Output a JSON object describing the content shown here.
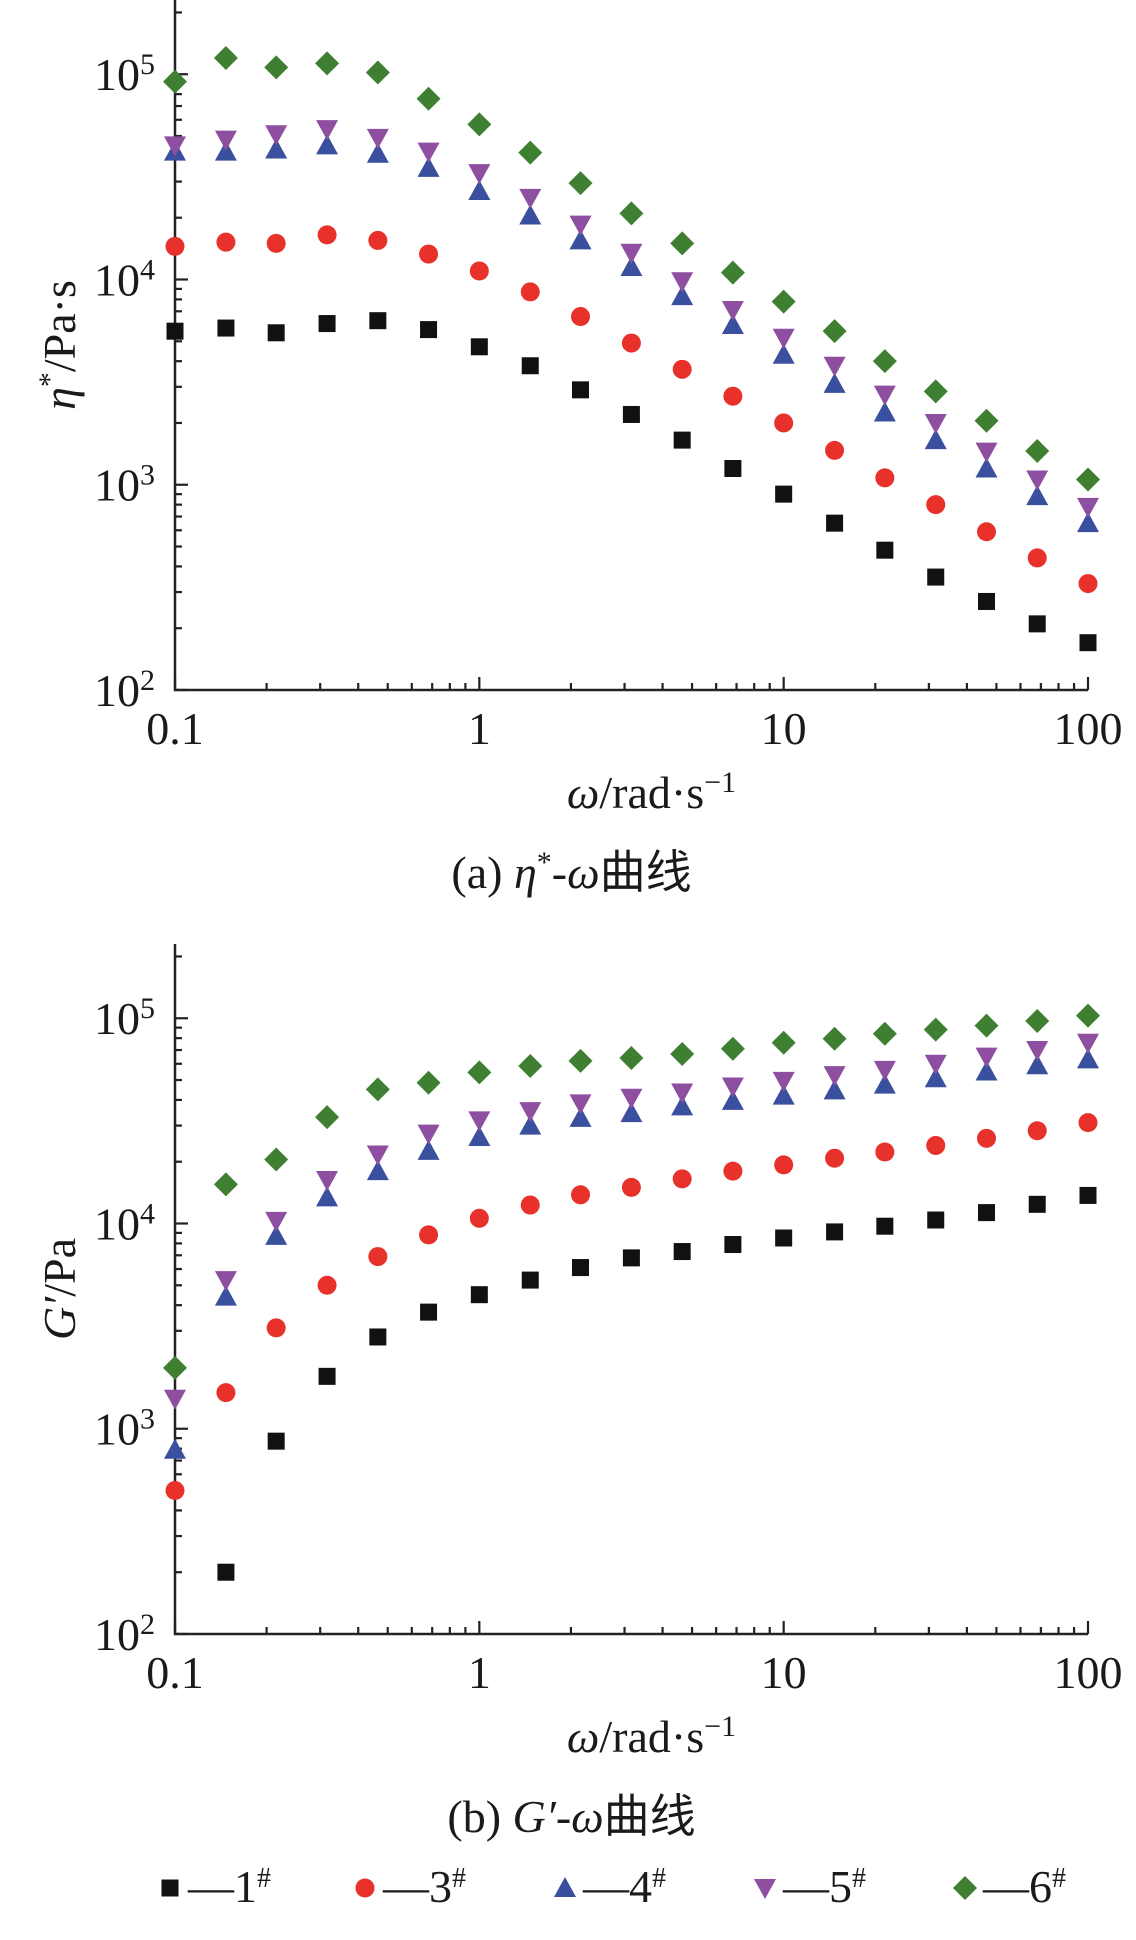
{
  "chart_data": [
    {
      "type": "scatter",
      "caption": "(a) η*-ω曲线",
      "xlabel": "ω/rad·s⁻¹",
      "ylabel": "η*/Pa·s",
      "xscale": "log",
      "yscale": "log",
      "xlim": [
        0.1,
        100
      ],
      "ylim": [
        100,
        230000
      ],
      "xticks": [
        0.1,
        1,
        10,
        100
      ],
      "xtick_labels": [
        "0.1",
        "1",
        "10",
        "100"
      ],
      "yticks": [
        100,
        1000,
        10000,
        100000
      ],
      "ytick_labels": [
        "10",
        "10",
        "10",
        "10"
      ],
      "ytick_exponents": [
        "2",
        "3",
        "4",
        "5"
      ],
      "x": [
        0.1,
        0.147,
        0.215,
        0.316,
        0.464,
        0.681,
        1.0,
        1.47,
        2.15,
        3.16,
        4.64,
        6.81,
        10.0,
        14.7,
        21.5,
        31.6,
        46.4,
        68.1,
        100
      ],
      "series": [
        {
          "name": "1#",
          "marker": "square",
          "color": "#111111",
          "values": [
            5600,
            5800,
            5500,
            6100,
            6300,
            5700,
            4700,
            3800,
            2900,
            2200,
            1650,
            1200,
            900,
            650,
            480,
            355,
            270,
            210,
            170
          ]
        },
        {
          "name": "3#",
          "marker": "circle",
          "color": "#e8312b",
          "values": [
            14500,
            15200,
            15000,
            16500,
            15500,
            13300,
            11000,
            8700,
            6600,
            4900,
            3650,
            2700,
            2000,
            1470,
            1080,
            800,
            590,
            440,
            330
          ]
        },
        {
          "name": "4#",
          "marker": "triangle-up",
          "color": "#3a4f9e",
          "values": [
            42000,
            42000,
            43000,
            45000,
            41000,
            35000,
            27000,
            20500,
            15500,
            11500,
            8300,
            6000,
            4300,
            3100,
            2250,
            1650,
            1200,
            880,
            650
          ]
        },
        {
          "name": "5#",
          "marker": "triangle-down",
          "color": "#8e4fa0",
          "values": [
            45000,
            48000,
            51000,
            54000,
            49000,
            42000,
            33000,
            25000,
            18500,
            13500,
            9800,
            7100,
            5200,
            3800,
            2750,
            2000,
            1450,
            1060,
            780
          ]
        },
        {
          "name": "6#",
          "marker": "diamond",
          "color": "#3f7f32",
          "values": [
            92000,
            120000,
            108000,
            113000,
            102000,
            76000,
            57000,
            41500,
            29500,
            21000,
            15000,
            10800,
            7800,
            5600,
            4000,
            2850,
            2050,
            1460,
            1060
          ]
        }
      ]
    },
    {
      "type": "scatter",
      "caption": "(b) G′-ω曲线",
      "xlabel": "ω/rad·s⁻¹",
      "ylabel": "G′/Pa",
      "xscale": "log",
      "yscale": "log",
      "xlim": [
        0.1,
        100
      ],
      "ylim": [
        100,
        230000
      ],
      "xticks": [
        0.1,
        1,
        10,
        100
      ],
      "xtick_labels": [
        "0.1",
        "1",
        "10",
        "100"
      ],
      "yticks": [
        100,
        1000,
        10000,
        100000
      ],
      "ytick_labels": [
        "10",
        "10",
        "10",
        "10"
      ],
      "ytick_exponents": [
        "2",
        "3",
        "4",
        "5"
      ],
      "x": [
        0.147,
        0.215,
        0.316,
        0.464,
        0.681,
        1.0,
        1.47,
        2.15,
        3.16,
        4.64,
        6.81,
        10.0,
        14.7,
        21.5,
        31.6,
        46.4,
        68.1,
        100
      ],
      "series": [
        {
          "name": "1#",
          "marker": "square",
          "color": "#111111",
          "values": [
            200,
            870,
            1800,
            2800,
            3700,
            4500,
            5300,
            6100,
            6800,
            7300,
            7900,
            8500,
            9100,
            9700,
            10400,
            11300,
            12400,
            13700
          ]
        },
        {
          "name": "3#",
          "marker": "circle",
          "color": "#e8312b",
          "values": [
            1500,
            3100,
            5000,
            6900,
            8800,
            10600,
            12300,
            13800,
            15000,
            16500,
            18000,
            19300,
            20800,
            22300,
            24000,
            26000,
            28300,
            31000
          ]
        },
        {
          "name": "4#",
          "marker": "triangle-up",
          "color": "#3a4f9e",
          "values": [
            4400,
            8700,
            13400,
            18000,
            22600,
            26400,
            30000,
            32700,
            34500,
            37200,
            39600,
            42000,
            44500,
            47500,
            51000,
            55000,
            59000,
            63000
          ]
        },
        {
          "name": "5#",
          "marker": "triangle-down",
          "color": "#8e4fa0",
          "values": [
            5300,
            10300,
            16300,
            21700,
            27400,
            31800,
            35300,
            38500,
            41000,
            43500,
            46500,
            49500,
            52800,
            56000,
            60000,
            65000,
            70000,
            76000
          ]
        },
        {
          "name": "6#",
          "marker": "diamond",
          "color": "#3f7f32",
          "values": [
            15500,
            20500,
            33000,
            45000,
            48500,
            54500,
            58500,
            62000,
            64000,
            67000,
            71000,
            76000,
            79500,
            84000,
            88000,
            92000,
            97000,
            103000
          ]
        }
      ],
      "first_points": {
        "x": 0.1,
        "values": [
          null,
          500,
          790,
          1400,
          1980
        ]
      }
    }
  ],
  "legend": {
    "placement": "bottom",
    "entries": [
      {
        "marker": "square",
        "color": "#111111",
        "label": "—1",
        "sup": "#"
      },
      {
        "marker": "circle",
        "color": "#e8312b",
        "label": "—3",
        "sup": "#"
      },
      {
        "marker": "triangle-up",
        "color": "#3a4f9e",
        "label": "—4",
        "sup": "#"
      },
      {
        "marker": "triangle-down",
        "color": "#8e4fa0",
        "label": "—5",
        "sup": "#"
      },
      {
        "marker": "diamond",
        "color": "#3f7f32",
        "label": "—6",
        "sup": "#"
      }
    ]
  }
}
